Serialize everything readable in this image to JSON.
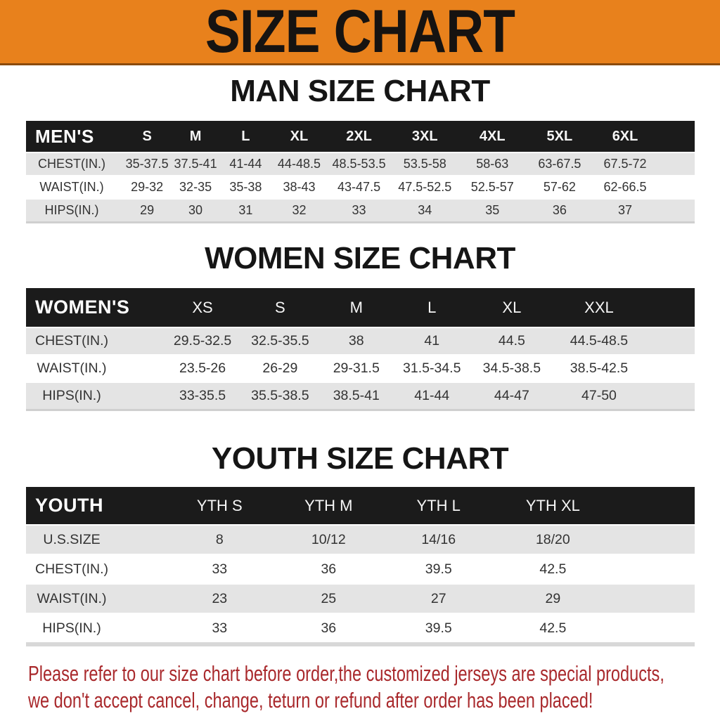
{
  "banner": {
    "title": "SIZE CHART"
  },
  "colors": {
    "banner_bg": "#E8811C",
    "table_header_bg": "#1b1b1b",
    "row_alt_bg": "#E4E4E4",
    "disclaimer_red": "#A9292C"
  },
  "sections": [
    {
      "id": "man",
      "title": "MAN SIZE CHART",
      "table": {
        "label": "MEN'S",
        "sizes": [
          "S",
          "M",
          "L",
          "XL",
          "2XL",
          "3XL",
          "4XL",
          "5XL",
          "6XL"
        ],
        "rows": [
          {
            "label": "CHEST(IN.)",
            "values": [
              "35-37.5",
              "37.5-41",
              "41-44",
              "44-48.5",
              "48.5-53.5",
              "53.5-58",
              "58-63",
              "63-67.5",
              "67.5-72"
            ]
          },
          {
            "label": "WAIST(IN.)",
            "values": [
              "29-32",
              "32-35",
              "35-38",
              "38-43",
              "43-47.5",
              "47.5-52.5",
              "52.5-57",
              "57-62",
              "62-66.5"
            ]
          },
          {
            "label": "HIPS(IN.)",
            "values": [
              "29",
              "30",
              "31",
              "32",
              "33",
              "34",
              "35",
              "36",
              "37"
            ]
          }
        ]
      }
    },
    {
      "id": "women",
      "title": "WOMEN SIZE CHART",
      "table": {
        "label": "WOMEN'S",
        "sizes": [
          "XS",
          "S",
          "M",
          "L",
          "XL",
          "XXL"
        ],
        "rows": [
          {
            "label": "CHEST(IN.)",
            "values": [
              "29.5-32.5",
              "32.5-35.5",
              "38",
              "41",
              "44.5",
              "44.5-48.5"
            ]
          },
          {
            "label": "WAIST(IN.)",
            "values": [
              "23.5-26",
              "26-29",
              "29-31.5",
              "31.5-34.5",
              "34.5-38.5",
              "38.5-42.5"
            ]
          },
          {
            "label": "HIPS(IN.)",
            "values": [
              "33-35.5",
              "35.5-38.5",
              "38.5-41",
              "41-44",
              "44-47",
              "47-50"
            ]
          }
        ]
      }
    },
    {
      "id": "youth",
      "title": "YOUTH SIZE CHART",
      "table": {
        "label": "YOUTH",
        "sizes": [
          "YTH S",
          "YTH M",
          "YTH L",
          "YTH XL"
        ],
        "rows": [
          {
            "label": "U.S.SIZE",
            "values": [
              "8",
              "10/12",
              "14/16",
              "18/20"
            ]
          },
          {
            "label": "CHEST(IN.)",
            "values": [
              "33",
              "36",
              "39.5",
              "42.5"
            ]
          },
          {
            "label": "WAIST(IN.)",
            "values": [
              "23",
              "25",
              "27",
              "29"
            ]
          },
          {
            "label": "HIPS(IN.)",
            "values": [
              "33",
              "36",
              "39.5",
              "42.5"
            ]
          }
        ]
      }
    }
  ],
  "footer": {
    "line1": "Please refer to our size chart before order,the customized jerseys are special products,",
    "line2": "we don't accept cancel, change, teturn or refund after order has been placed!"
  }
}
